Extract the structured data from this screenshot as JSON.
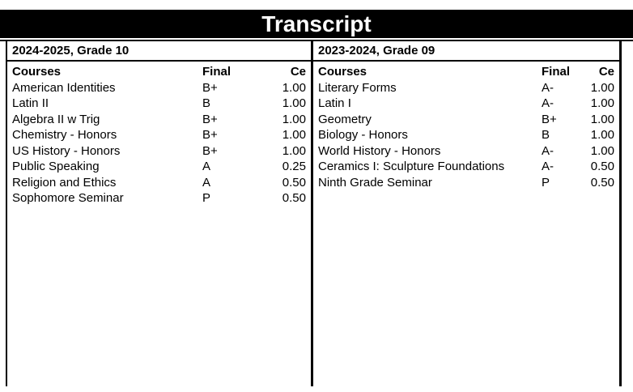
{
  "title": "Transcript",
  "colors": {
    "title_bar_background": "#000000",
    "title_text": "#ffffff",
    "border": "#000000",
    "body_text": "#000000",
    "page_background": "#ffffff"
  },
  "terms": [
    {
      "label": "2024-2025, Grade 10",
      "columns": {
        "course": "Courses",
        "final": "Final",
        "credits": "Ce"
      },
      "rows": [
        {
          "course": "American Identities",
          "final": "B+",
          "credits": "1.00"
        },
        {
          "course": "Latin II",
          "final": "B",
          "credits": "1.00"
        },
        {
          "course": "Algebra II w Trig",
          "final": "B+",
          "credits": "1.00"
        },
        {
          "course": "Chemistry - Honors",
          "final": "B+",
          "credits": "1.00"
        },
        {
          "course": "US History - Honors",
          "final": "B+",
          "credits": "1.00"
        },
        {
          "course": "Public Speaking",
          "final": "A",
          "credits": "0.25"
        },
        {
          "course": "Religion and Ethics",
          "final": "A",
          "credits": "0.50"
        },
        {
          "course": "Sophomore Seminar",
          "final": "P",
          "credits": "0.50"
        }
      ]
    },
    {
      "label": "2023-2024, Grade 09",
      "columns": {
        "course": "Courses",
        "final": "Final",
        "credits": "Ce"
      },
      "rows": [
        {
          "course": "Literary Forms",
          "final": "A-",
          "credits": "1.00"
        },
        {
          "course": "Latin I",
          "final": "A-",
          "credits": "1.00"
        },
        {
          "course": "Geometry",
          "final": "B+",
          "credits": "1.00"
        },
        {
          "course": "Biology - Honors",
          "final": "B",
          "credits": "1.00"
        },
        {
          "course": "World History - Honors",
          "final": "A-",
          "credits": "1.00"
        },
        {
          "course": "Ceramics I: Sculpture Foundations",
          "final": "A-",
          "credits": "0.50"
        },
        {
          "course": "Ninth Grade Seminar",
          "final": "P",
          "credits": "0.50"
        }
      ]
    }
  ]
}
